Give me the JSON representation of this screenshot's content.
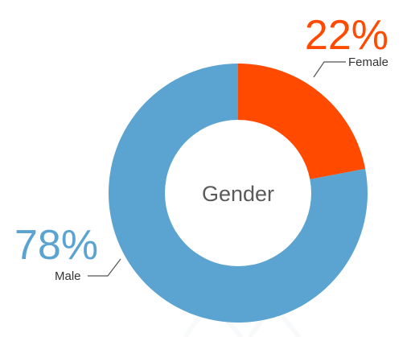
{
  "chart_data": {
    "type": "pie",
    "donut": true,
    "center_label": "Gender",
    "slices": [
      {
        "label": "Female",
        "value": 22,
        "value_label": "22%",
        "color": "#ff4a00"
      },
      {
        "label": "Male",
        "value": 78,
        "value_label": "78%",
        "color": "#5ba3d0"
      }
    ]
  }
}
